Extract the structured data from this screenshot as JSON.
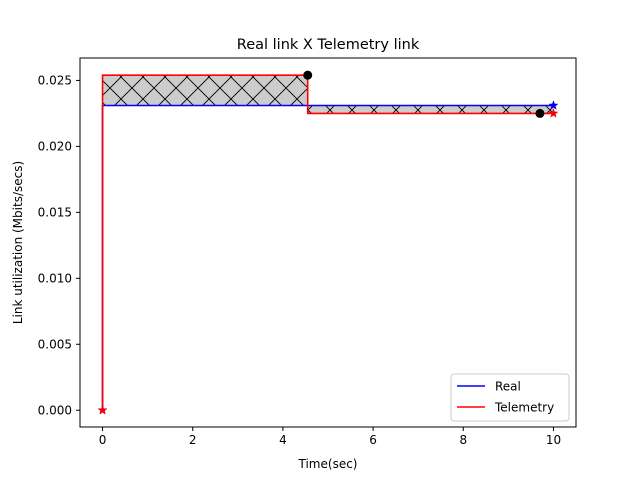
{
  "chart_data": {
    "type": "line",
    "title": "Real link X Telemetry link",
    "xlabel": "Time(sec)",
    "ylabel": "Link utilization (Mbits/secs)",
    "xlim": [
      -0.5,
      10.5
    ],
    "ylim": [
      -0.00127,
      0.0267
    ],
    "x_ticks": [
      0,
      2,
      4,
      6,
      8,
      10
    ],
    "x_tick_labels": [
      "0",
      "2",
      "4",
      "6",
      "8",
      "10"
    ],
    "y_ticks": [
      0.0,
      0.005,
      0.01,
      0.015,
      0.02,
      0.025
    ],
    "y_tick_labels": [
      "0.000",
      "0.005",
      "0.010",
      "0.015",
      "0.020",
      "0.025"
    ],
    "grid": false,
    "legend_position": "lower-right",
    "series": [
      {
        "name": "Real",
        "color": "#0000ff",
        "step": "post",
        "x": [
          0,
          0,
          10
        ],
        "y": [
          0.0,
          0.0231,
          0.0231
        ],
        "end_markers": "star"
      },
      {
        "name": "Telemetry",
        "color": "#ff0000",
        "step": "post",
        "x": [
          0,
          0,
          4.55,
          10
        ],
        "y": [
          0.0,
          0.0254,
          0.0225,
          0.0225
        ],
        "end_markers": "star"
      }
    ],
    "difference_regions": [
      {
        "x": [
          0,
          4.55
        ],
        "y_low": 0.0231,
        "y_high": 0.0254,
        "fill": "#cccccc",
        "hatch": "x"
      },
      {
        "x": [
          4.55,
          10
        ],
        "y_low": 0.0225,
        "y_high": 0.0231,
        "fill": "#cccccc",
        "hatch": "x"
      }
    ],
    "points": [
      {
        "x": 4.55,
        "y": 0.0254,
        "color": "#000000"
      },
      {
        "x": 9.7,
        "y": 0.0225,
        "color": "#000000"
      }
    ]
  }
}
